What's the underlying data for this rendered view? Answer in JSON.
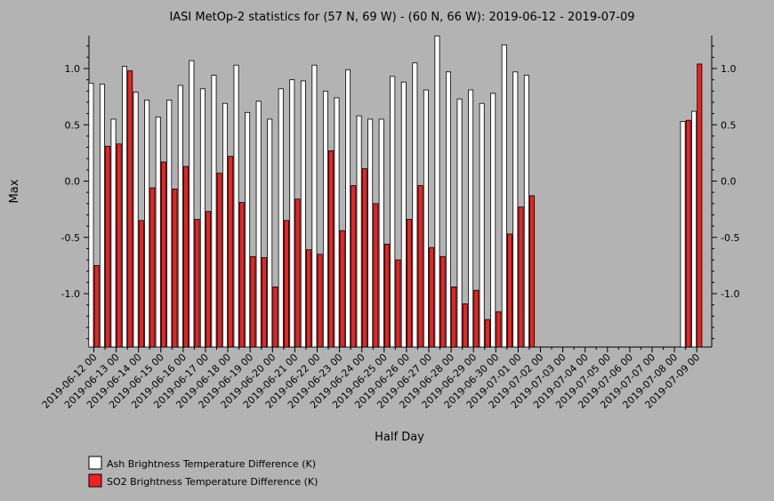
{
  "chart_data": {
    "type": "bar",
    "title": "IASI MetOp-2 statistics for (57 N, 69 W) - (60 N, 66 W): 2019-06-12 - 2019-07-09",
    "xlabel": "Half Day",
    "ylabel": "Max",
    "ylim": [
      -1.47,
      1.3
    ],
    "yticks": [
      1.0,
      0.5,
      0.0,
      -0.5,
      -1.0
    ],
    "ytick_labels": [
      "1.0",
      "0.5",
      "0.0",
      "-0.5",
      "-1.0"
    ],
    "grid": false,
    "legend_position": "bottom-left",
    "x_tick_labels": [
      "2019-06-12 00",
      "2019-06-13 00",
      "2019-06-14 00",
      "2019-06-15 00",
      "2019-06-16 00",
      "2019-06-17 00",
      "2019-06-18 00",
      "2019-06-19 00",
      "2019-06-20 00",
      "2019-06-21 00",
      "2019-06-22 00",
      "2019-06-23 00",
      "2019-06-24 00",
      "2019-06-25 00",
      "2019-06-26 00",
      "2019-06-27 00",
      "2019-06-28 00",
      "2019-06-29 00",
      "2019-06-30 00",
      "2019-07-01 00",
      "2019-07-02 00",
      "2019-07-03 00",
      "2019-07-04 00",
      "2019-07-05 00",
      "2019-07-06 00",
      "2019-07-07 00",
      "2019-07-08 00",
      "2019-07-09 00"
    ],
    "categories": [
      "2019-06-12 00",
      "2019-06-12 12",
      "2019-06-13 00",
      "2019-06-13 12",
      "2019-06-14 00",
      "2019-06-14 12",
      "2019-06-15 00",
      "2019-06-15 12",
      "2019-06-16 00",
      "2019-06-16 12",
      "2019-06-17 00",
      "2019-06-17 12",
      "2019-06-18 00",
      "2019-06-18 12",
      "2019-06-19 00",
      "2019-06-19 12",
      "2019-06-20 00",
      "2019-06-20 12",
      "2019-06-21 00",
      "2019-06-21 12",
      "2019-06-22 00",
      "2019-06-22 12",
      "2019-06-23 00",
      "2019-06-23 12",
      "2019-06-24 00",
      "2019-06-24 12",
      "2019-06-25 00",
      "2019-06-25 12",
      "2019-06-26 00",
      "2019-06-26 12",
      "2019-06-27 00",
      "2019-06-27 12",
      "2019-06-28 00",
      "2019-06-28 12",
      "2019-06-29 00",
      "2019-06-29 12",
      "2019-06-30 00",
      "2019-06-30 12",
      "2019-07-01 00",
      "2019-07-01 12",
      "2019-07-02 00",
      "2019-07-02 12",
      "2019-07-03 00",
      "2019-07-03 12",
      "2019-07-04 00",
      "2019-07-04 12",
      "2019-07-05 00",
      "2019-07-05 12",
      "2019-07-06 00",
      "2019-07-06 12",
      "2019-07-07 00",
      "2019-07-07 12",
      "2019-07-08 00",
      "2019-07-08 12",
      "2019-07-09 00"
    ],
    "series": [
      {
        "name": "Ash Brightness Temperature Difference (K)",
        "color": "#ffffff",
        "values": [
          0.87,
          0.86,
          0.55,
          1.02,
          0.79,
          0.72,
          0.57,
          0.72,
          0.85,
          1.07,
          0.82,
          0.94,
          0.69,
          1.03,
          0.61,
          0.71,
          0.55,
          0.82,
          0.9,
          0.89,
          1.03,
          0.8,
          0.74,
          0.99,
          0.58,
          0.55,
          0.55,
          0.93,
          0.88,
          1.05,
          0.81,
          1.29,
          0.97,
          0.73,
          0.81,
          0.69,
          0.78,
          1.21,
          0.97,
          0.94,
          null,
          null,
          null,
          null,
          null,
          null,
          null,
          null,
          null,
          null,
          null,
          null,
          null,
          0.53,
          0.62
        ]
      },
      {
        "name": "SO2 Brightness Temperature Difference (K)",
        "color": "#ee2222",
        "values": [
          -0.75,
          0.31,
          0.33,
          0.98,
          -0.35,
          -0.06,
          0.17,
          -0.07,
          0.13,
          -0.34,
          -0.27,
          0.07,
          0.22,
          -0.19,
          -0.67,
          -0.68,
          -0.94,
          -0.35,
          -0.16,
          -0.61,
          -0.65,
          0.27,
          -0.44,
          -0.04,
          0.11,
          -0.2,
          -0.56,
          -0.7,
          -0.34,
          -0.04,
          -0.59,
          -0.67,
          -0.94,
          -1.09,
          -0.97,
          -1.23,
          -1.16,
          -0.47,
          -0.23,
          -0.13,
          null,
          null,
          null,
          null,
          null,
          null,
          null,
          null,
          null,
          null,
          null,
          null,
          null,
          0.54,
          1.04
        ]
      }
    ]
  }
}
